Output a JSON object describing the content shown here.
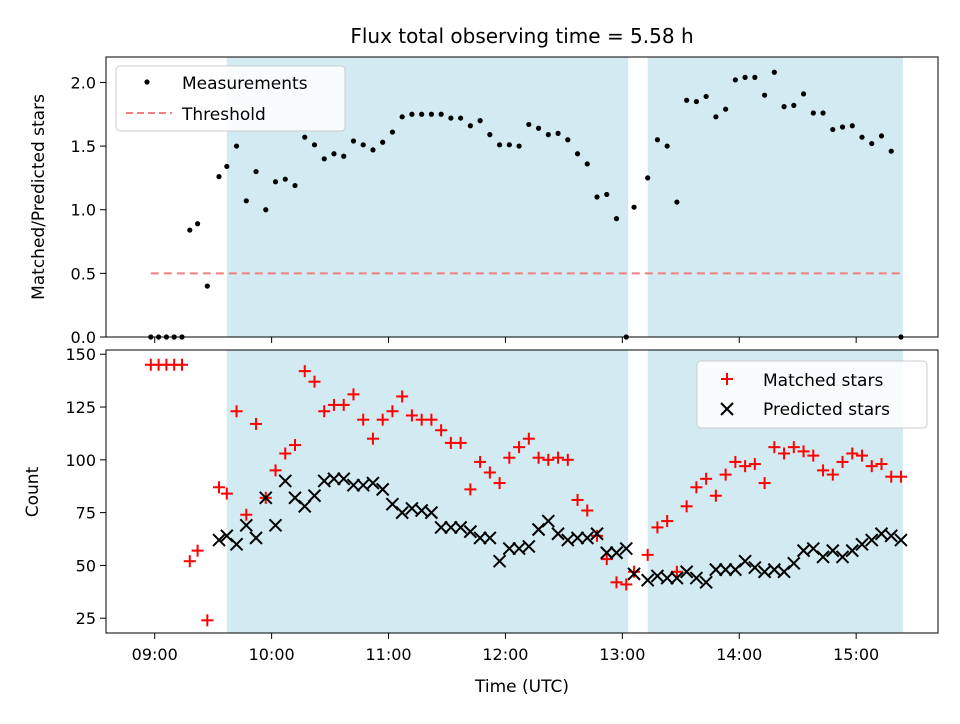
{
  "figure": {
    "title": "Flux total observing time = 5.58 h"
  },
  "colors": {
    "measurement": "#000000",
    "threshold": "#f08080",
    "matched": "#ff0000",
    "predicted": "#000000",
    "shade": "#add8e6"
  },
  "chart_data": [
    {
      "type": "scatter",
      "title": "Flux total observing time = 5.58 h",
      "xlabel": "",
      "ylabel": "Matched/Predicted stars",
      "xlim": [
        "08:35",
        "15:42"
      ],
      "ylim": [
        0,
        2.2
      ],
      "yticks": [
        "0.0",
        "0.5",
        "1.0",
        "1.5",
        "2.0"
      ],
      "grid": false,
      "legend_position": "top-left",
      "shaded_intervals": [
        [
          "09:37",
          "13:03"
        ],
        [
          "13:13",
          "15:24"
        ]
      ],
      "threshold": {
        "name": "Threshold",
        "y": 0.5,
        "x_range": [
          "08:58",
          "15:24"
        ]
      },
      "series": [
        {
          "name": "Measurements",
          "x": [
            "08:58",
            "09:02",
            "09:06",
            "09:10",
            "09:14",
            "09:18",
            "09:22",
            "09:27",
            "09:33",
            "09:37",
            "09:42",
            "09:47",
            "09:52",
            "09:57",
            "10:02",
            "10:07",
            "10:12",
            "10:17",
            "10:22",
            "10:27",
            "10:32",
            "10:37",
            "10:42",
            "10:47",
            "10:52",
            "10:57",
            "11:02",
            "11:07",
            "11:12",
            "11:17",
            "11:22",
            "11:27",
            "11:32",
            "11:37",
            "11:42",
            "11:47",
            "11:52",
            "11:57",
            "12:02",
            "12:07",
            "12:12",
            "12:17",
            "12:22",
            "12:27",
            "12:32",
            "12:37",
            "12:42",
            "12:47",
            "12:52",
            "12:57",
            "13:02",
            "13:06",
            "13:13",
            "13:18",
            "13:23",
            "13:28",
            "13:33",
            "13:38",
            "13:43",
            "13:48",
            "13:53",
            "13:58",
            "14:03",
            "14:08",
            "14:13",
            "14:18",
            "14:23",
            "14:28",
            "14:33",
            "14:38",
            "14:43",
            "14:48",
            "14:53",
            "14:58",
            "15:03",
            "15:08",
            "15:13",
            "15:18",
            "15:23"
          ],
          "y": [
            0,
            0,
            0,
            0,
            0,
            0.84,
            0.89,
            0.4,
            1.26,
            1.34,
            1.5,
            1.07,
            1.3,
            1.0,
            1.22,
            1.24,
            1.19,
            1.57,
            1.51,
            1.4,
            1.44,
            1.42,
            1.54,
            1.51,
            1.47,
            1.53,
            1.61,
            1.73,
            1.75,
            1.75,
            1.75,
            1.75,
            1.72,
            1.72,
            1.66,
            1.7,
            1.59,
            1.51,
            1.51,
            1.5,
            1.67,
            1.64,
            1.59,
            1.6,
            1.55,
            1.44,
            1.36,
            1.1,
            1.12,
            0.93,
            0,
            1.02,
            1.25,
            1.55,
            1.5,
            1.06,
            1.86,
            1.85,
            1.89,
            1.73,
            1.79,
            2.02,
            2.04,
            2.04,
            1.9,
            2.08,
            1.81,
            1.82,
            1.91,
            1.76,
            1.76,
            1.63,
            1.65,
            1.66,
            1.57,
            1.52,
            1.58,
            1.46,
            0
          ]
        }
      ]
    },
    {
      "type": "scatter",
      "xlabel": "Time (UTC)",
      "ylabel": "Count",
      "xlim": [
        "08:35",
        "15:42"
      ],
      "ylim": [
        18,
        152
      ],
      "xticks": [
        "09:00",
        "10:00",
        "11:00",
        "12:00",
        "13:00",
        "14:00",
        "15:00"
      ],
      "yticks": [
        "25",
        "50",
        "75",
        "100",
        "125",
        "150"
      ],
      "grid": false,
      "legend_position": "top-right",
      "shaded_intervals": [
        [
          "09:37",
          "13:03"
        ],
        [
          "13:13",
          "15:24"
        ]
      ],
      "series": [
        {
          "name": "Matched stars",
          "marker": "plus",
          "x": [
            "08:58",
            "09:02",
            "09:06",
            "09:10",
            "09:14",
            "09:18",
            "09:22",
            "09:27",
            "09:33",
            "09:37",
            "09:42",
            "09:47",
            "09:52",
            "09:57",
            "10:02",
            "10:07",
            "10:12",
            "10:17",
            "10:22",
            "10:27",
            "10:32",
            "10:37",
            "10:42",
            "10:47",
            "10:52",
            "10:57",
            "11:02",
            "11:07",
            "11:12",
            "11:17",
            "11:22",
            "11:27",
            "11:32",
            "11:37",
            "11:42",
            "11:47",
            "11:52",
            "11:57",
            "12:02",
            "12:07",
            "12:12",
            "12:17",
            "12:22",
            "12:27",
            "12:32",
            "12:37",
            "12:42",
            "12:47",
            "12:52",
            "12:57",
            "13:02",
            "13:06",
            "13:13",
            "13:18",
            "13:23",
            "13:28",
            "13:33",
            "13:38",
            "13:43",
            "13:48",
            "13:53",
            "13:58",
            "14:03",
            "14:08",
            "14:13",
            "14:18",
            "14:23",
            "14:28",
            "14:33",
            "14:38",
            "14:43",
            "14:48",
            "14:53",
            "14:58",
            "15:03",
            "15:08",
            "15:13",
            "15:18",
            "15:23"
          ],
          "y": [
            145,
            145,
            145,
            145,
            145,
            52,
            57,
            24,
            87,
            84,
            123,
            74,
            117,
            82,
            95,
            103,
            107,
            142,
            137,
            123,
            126,
            126,
            131,
            119,
            110,
            119,
            123,
            130,
            121,
            119,
            119,
            114,
            108,
            108,
            86,
            99,
            94,
            89,
            101,
            106,
            110,
            101,
            100,
            101,
            100,
            81,
            76,
            64,
            53,
            42,
            41,
            47,
            55,
            68,
            71,
            47,
            78,
            87,
            91,
            83,
            93,
            99,
            97,
            98,
            89,
            106,
            103,
            106,
            104,
            102,
            95,
            93,
            99,
            103,
            102,
            97,
            98,
            92,
            92
          ]
        },
        {
          "name": "Predicted stars",
          "marker": "x",
          "x": [
            "09:33",
            "09:37",
            "09:42",
            "09:47",
            "09:52",
            "09:57",
            "10:02",
            "10:07",
            "10:12",
            "10:17",
            "10:22",
            "10:27",
            "10:32",
            "10:37",
            "10:42",
            "10:47",
            "10:52",
            "10:57",
            "11:02",
            "11:07",
            "11:12",
            "11:17",
            "11:22",
            "11:27",
            "11:32",
            "11:37",
            "11:42",
            "11:47",
            "11:52",
            "11:57",
            "12:02",
            "12:07",
            "12:12",
            "12:17",
            "12:22",
            "12:27",
            "12:32",
            "12:37",
            "12:42",
            "12:47",
            "12:52",
            "12:57",
            "13:02",
            "13:06",
            "13:13",
            "13:18",
            "13:23",
            "13:28",
            "13:33",
            "13:38",
            "13:43",
            "13:48",
            "13:53",
            "13:58",
            "14:03",
            "14:08",
            "14:13",
            "14:18",
            "14:23",
            "14:28",
            "14:33",
            "14:38",
            "14:43",
            "14:48",
            "14:53",
            "14:58",
            "15:03",
            "15:08",
            "15:13",
            "15:18",
            "15:23"
          ],
          "y": [
            62,
            64,
            60,
            69,
            63,
            82,
            69,
            90,
            82,
            78,
            83,
            90,
            91,
            91,
            88,
            88,
            89,
            86,
            79,
            75,
            77,
            76,
            75,
            68,
            68,
            68,
            66,
            63,
            63,
            52,
            58,
            58,
            59,
            67,
            71,
            65,
            62,
            63,
            63,
            65,
            56,
            56,
            58,
            46,
            43,
            45,
            44,
            44,
            47,
            44,
            42,
            48,
            48,
            48,
            52,
            49,
            47,
            48,
            47,
            51,
            57,
            58,
            54,
            57,
            54,
            57,
            60,
            62,
            65,
            64,
            62
          ]
        }
      ]
    }
  ]
}
